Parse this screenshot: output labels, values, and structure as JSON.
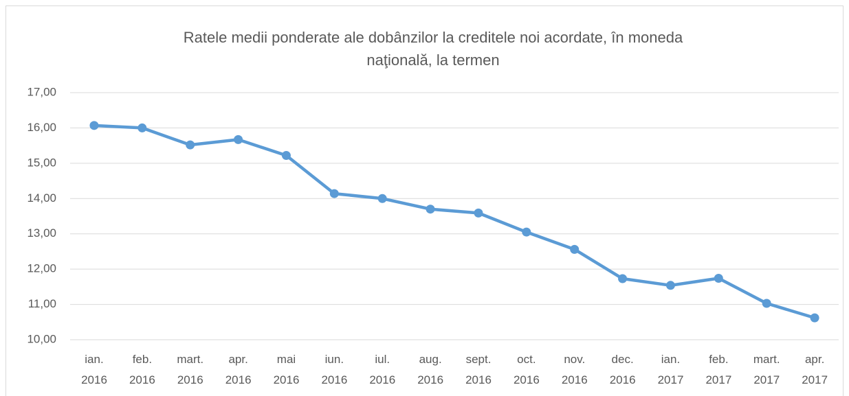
{
  "chart_data": {
    "type": "line",
    "title": "Ratele medii ponderate ale dobânzilor la creditele noi acordate, în moneda\nnaţională,  la termen",
    "categories": [
      "ian.\n2016",
      "feb.\n2016",
      "mart.\n2016",
      "apr.\n2016",
      "mai\n2016",
      "iun.\n2016",
      "iul.\n2016",
      "aug.\n2016",
      "sept.\n2016",
      "oct.\n2016",
      "nov.\n2016",
      "dec.\n2016",
      "ian.\n2017",
      "feb.\n2017",
      "mart.\n2017",
      "apr.\n2017"
    ],
    "series": [
      {
        "color": "#5b9bd5",
        "values": [
          16.07,
          16.0,
          15.52,
          15.67,
          15.22,
          14.14,
          14.0,
          13.7,
          13.59,
          13.05,
          12.56,
          11.73,
          11.54,
          11.74,
          11.03,
          10.62
        ]
      }
    ],
    "ylim": [
      10,
      17
    ],
    "yticks": [
      {
        "value": 10,
        "label": "10,00"
      },
      {
        "value": 11,
        "label": "11,00"
      },
      {
        "value": 12,
        "label": "12,00"
      },
      {
        "value": 13,
        "label": "13,00"
      },
      {
        "value": 14,
        "label": "14,00"
      },
      {
        "value": 15,
        "label": "15,00"
      },
      {
        "value": 16,
        "label": "16,00"
      },
      {
        "value": 17,
        "label": "17,00"
      }
    ],
    "grid": true
  }
}
